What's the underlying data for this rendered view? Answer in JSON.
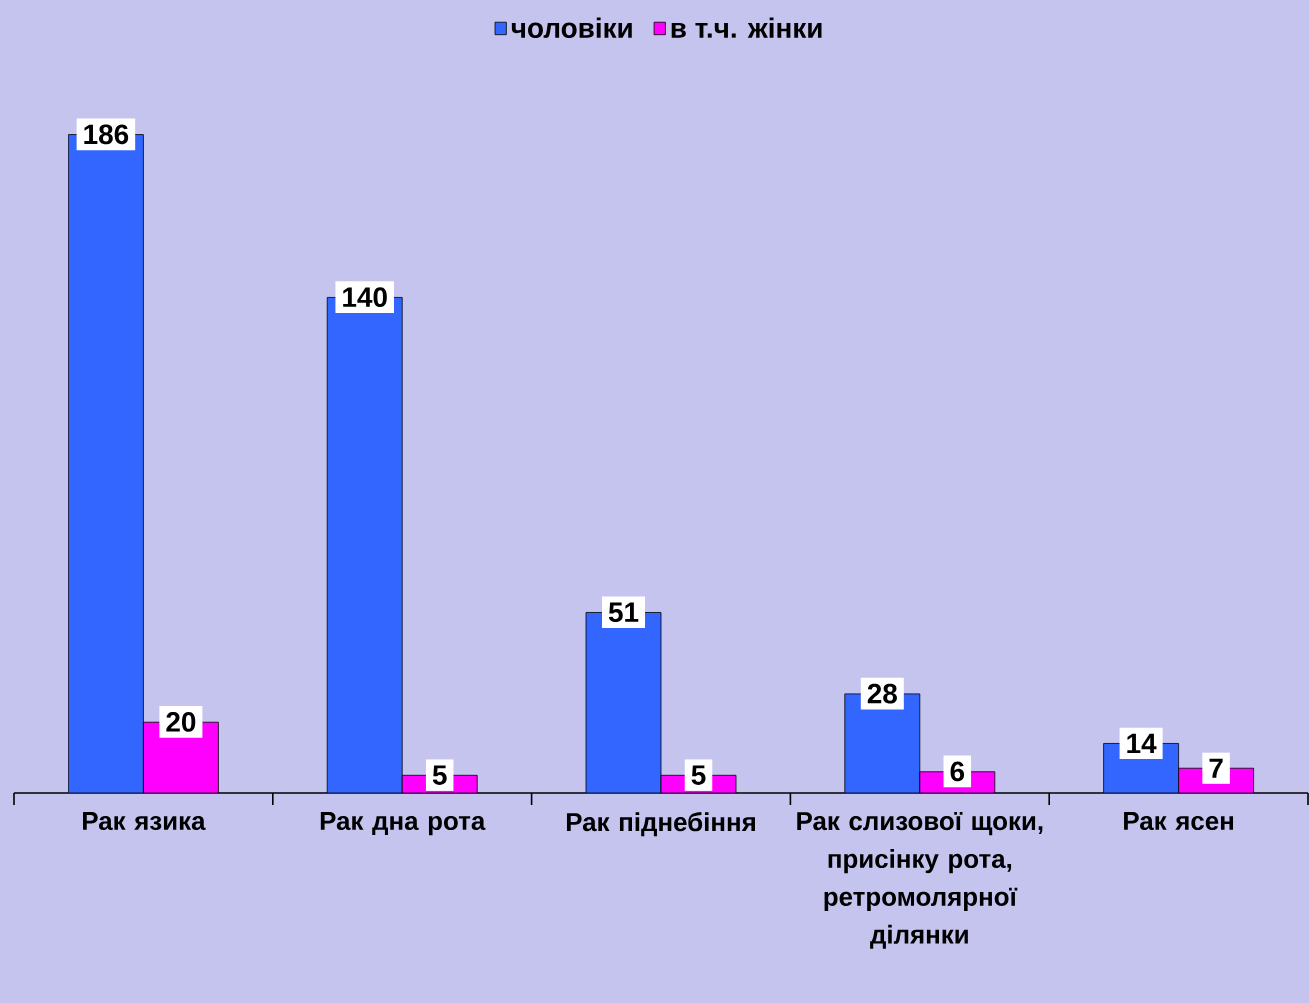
{
  "chart_data": {
    "type": "bar",
    "categories": [
      "Рак язика",
      "Рак дна рота",
      "Рак піднебіння",
      "Рак слизової щоки, присінку рота, ретромолярної ділянки",
      "Рак ясен"
    ],
    "series": [
      {
        "name": "чоловіки",
        "color": "#3366ff",
        "values": [
          186,
          140,
          51,
          28,
          14
        ]
      },
      {
        "name": "в т.ч. жінки",
        "color": "#ff00ff",
        "values": [
          20,
          5,
          5,
          6,
          7
        ]
      }
    ],
    "data_labels": true,
    "legend": "top"
  }
}
